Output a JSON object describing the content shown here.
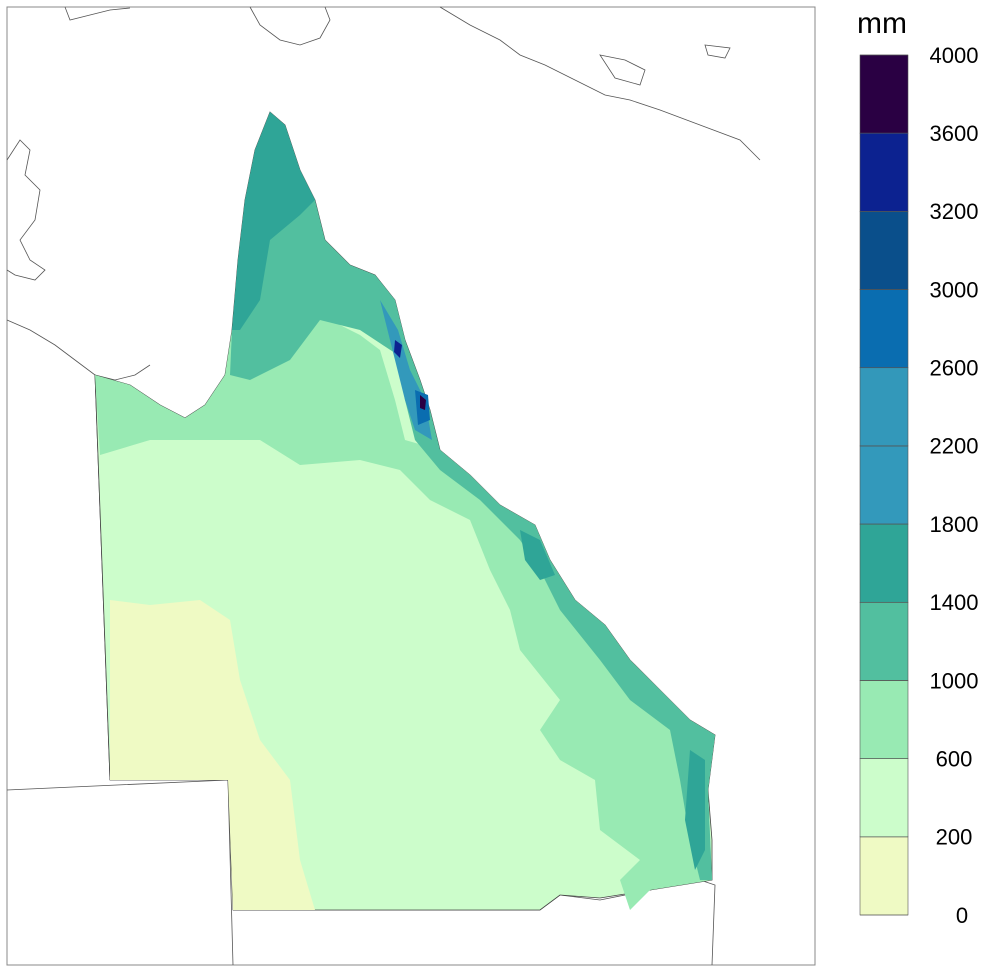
{
  "colorbar": {
    "title": "mm",
    "levels": [
      0,
      200,
      600,
      1000,
      1400,
      1800,
      2200,
      2600,
      3000,
      3200,
      3600,
      4000
    ],
    "colors": [
      "#effac4",
      "#ccfdcb",
      "#98eab3",
      "#52bf9f",
      "#2fa597",
      "#3399bb",
      "#3398ba",
      "#0a6db0",
      "#0a4f8b",
      "#0c2290",
      "#2a0043"
    ]
  }
}
